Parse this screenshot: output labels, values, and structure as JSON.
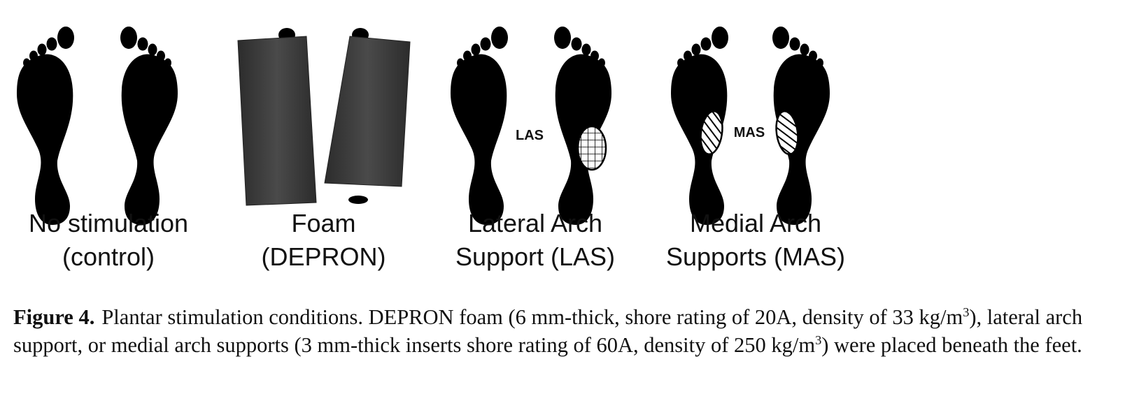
{
  "panels": [
    {
      "name": "no-stimulation",
      "line1": "No stimulation",
      "line2": "(control)"
    },
    {
      "name": "foam",
      "line1": "Foam",
      "line2": "(DEPRON)"
    },
    {
      "name": "lateral-arch-support",
      "line1": "Lateral Arch",
      "line2": "Support (LAS)",
      "insert_label": "LAS"
    },
    {
      "name": "medial-arch-supports",
      "line1": "Medial Arch",
      "line2": "Supports (MAS)",
      "insert_label": "MAS"
    }
  ],
  "caption": {
    "label": "Figure 4.",
    "part1": "Plantar stimulation conditions. DEPRON foam (6 mm-thick, shore rating of 20A, density of 33 kg/m",
    "sup1": "3",
    "part2": "), lateral arch support, or medial arch supports (3 mm-thick inserts shore rating of 60A, density of 250 kg/m",
    "sup2": "3",
    "part3": ") were placed beneath the feet."
  },
  "colors": {
    "foot": "#000000",
    "foam": "#3a3a3a",
    "text": "#111111"
  }
}
